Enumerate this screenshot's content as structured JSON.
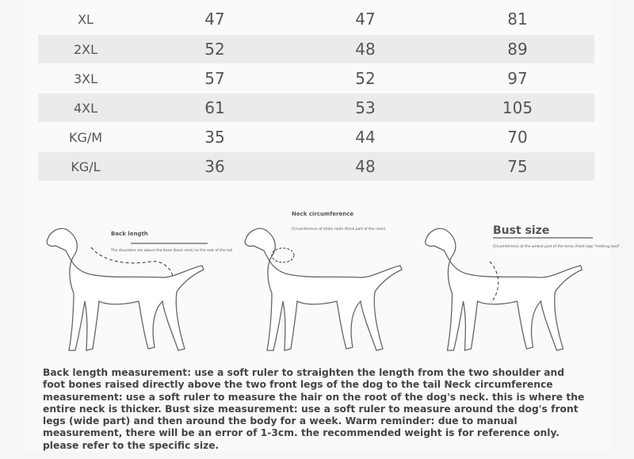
{
  "table": {
    "rows": [
      [
        "XL",
        47,
        47,
        81
      ],
      [
        "2XL",
        52,
        48,
        89
      ],
      [
        "3XL",
        57,
        52,
        97
      ],
      [
        "4XL",
        61,
        53,
        105
      ],
      [
        "KG/M",
        35,
        44,
        70
      ],
      [
        "KG/L",
        36,
        48,
        75
      ]
    ]
  },
  "diagrams": [
    {
      "label": "Back length",
      "note": "The shoulders are above the bone (back neck) to the root of the tail"
    },
    {
      "label": "Neck circumference",
      "note": "Circumference of static roots (thick part of the neck)"
    },
    {
      "label": "Bust size",
      "note": "Circumference at the widest part of the torso (front legs \"melting next\""
    }
  ],
  "description": "Back length measurement: use a soft ruler to straighten the length from the two shoulder and foot bones raised directly above the two front legs of the dog to the tail Neck circumference measurement: use a soft ruler to measure the hair on the root of the dog's neck. this is where the entire neck is thicker. Bust size measurement: use a soft ruler to measure around the dog's front legs (wide part) and then around the body for a week. Warm reminder: due to manual measurement, there will be an error of 1-3cm. the recommended weight is for reference only. please refer to the specific size."
}
